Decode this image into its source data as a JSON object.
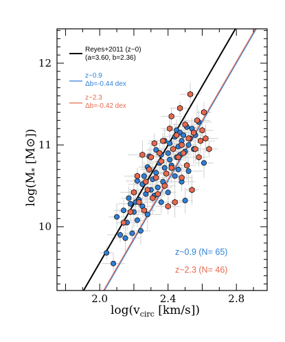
{
  "chart_data": {
    "type": "scatter",
    "xlabel": "log(v_circ [km/s])",
    "ylabel": "log(M_* [M_⊙])",
    "xlim": [
      1.75,
      2.98
    ],
    "ylim": [
      9.22,
      12.42
    ],
    "x_ticks": [
      2.0,
      2.4,
      2.8
    ],
    "x_tick_labels": [
      "2.0",
      "2.4",
      "2.8"
    ],
    "y_ticks": [
      10,
      11,
      12
    ],
    "y_tick_labels": [
      "10",
      "11",
      "12"
    ],
    "colors": {
      "reference": "#000000",
      "z09": "#2f7fd6",
      "z23": "#e8684e"
    },
    "legend": {
      "placement": "top-left",
      "entries": [
        {
          "line1": "Reyes+2011 (z~0)",
          "line2": "(a=3.60, b=2.36)",
          "color": "#000000"
        },
        {
          "line1": "z~0.9",
          "line2": "Δb=-0.44 dex",
          "color": "#2f7fd6"
        },
        {
          "line1": "z~2.3",
          "line2": "Δb=-0.42 dex",
          "color": "#e8684e"
        }
      ]
    },
    "counts": [
      {
        "label": "z~0.9 (N= 65)",
        "color": "#2f7fd6"
      },
      {
        "label": "z~2.3 (N= 46)",
        "color": "#e8684e"
      }
    ],
    "lines": [
      {
        "id": "reyes",
        "slope": 3.6,
        "intercept": 2.36,
        "color": "#000000"
      },
      {
        "id": "z09-fit",
        "slope": 3.6,
        "intercept": 1.92,
        "color": "#2f7fd6"
      },
      {
        "id": "z23-fit",
        "slope": 3.6,
        "intercept": 1.94,
        "color": "#e8684e"
      }
    ],
    "series": [
      {
        "id": "z09",
        "marker": "circle",
        "x": [
          2.04,
          2.08,
          2.1,
          2.12,
          2.14,
          2.15,
          2.16,
          2.17,
          2.18,
          2.19,
          2.2,
          2.2,
          2.21,
          2.22,
          2.22,
          2.23,
          2.24,
          2.25,
          2.25,
          2.26,
          2.27,
          2.28,
          2.28,
          2.29,
          2.3,
          2.31,
          2.32,
          2.33,
          2.33,
          2.34,
          2.35,
          2.36,
          2.36,
          2.37,
          2.38,
          2.38,
          2.39,
          2.4,
          2.4,
          2.41,
          2.41,
          2.42,
          2.43,
          2.44,
          2.44,
          2.45,
          2.45,
          2.46,
          2.46,
          2.47,
          2.47,
          2.48,
          2.48,
          2.49,
          2.5,
          2.5,
          2.51,
          2.52,
          2.52,
          2.53,
          2.54,
          2.55,
          2.56,
          2.58,
          2.61
        ],
        "y": [
          9.68,
          9.55,
          10.12,
          9.9,
          10.2,
          9.86,
          10.05,
          10.35,
          10.28,
          9.92,
          10.42,
          10.18,
          10.3,
          10.56,
          10.08,
          10.33,
          9.95,
          10.52,
          10.25,
          10.62,
          10.4,
          10.73,
          10.15,
          10.86,
          10.45,
          10.58,
          10.38,
          10.66,
          10.94,
          10.48,
          10.78,
          10.88,
          10.3,
          10.55,
          10.72,
          11.05,
          10.65,
          10.9,
          10.42,
          10.82,
          11.02,
          10.75,
          10.95,
          10.62,
          11.1,
          10.85,
          11.18,
          10.7,
          10.98,
          10.88,
          11.15,
          10.55,
          11.05,
          11.12,
          10.92,
          10.32,
          11.22,
          11.0,
          10.68,
          11.08,
          11.2,
          10.95,
          11.12,
          11.28,
          10.78
        ]
      },
      {
        "id": "z23",
        "marker": "hexagon",
        "x": [
          2.14,
          2.18,
          2.2,
          2.22,
          2.23,
          2.25,
          2.26,
          2.27,
          2.28,
          2.29,
          2.3,
          2.31,
          2.32,
          2.33,
          2.34,
          2.35,
          2.36,
          2.37,
          2.38,
          2.39,
          2.4,
          2.41,
          2.42,
          2.42,
          2.43,
          2.44,
          2.45,
          2.46,
          2.47,
          2.48,
          2.48,
          2.49,
          2.5,
          2.51,
          2.52,
          2.53,
          2.54,
          2.55,
          2.56,
          2.57,
          2.58,
          2.59,
          2.6,
          2.61,
          2.62,
          2.64
        ],
        "y": [
          10.05,
          10.18,
          10.42,
          10.62,
          10.3,
          10.88,
          10.2,
          10.55,
          10.45,
          10.7,
          10.85,
          10.35,
          11.02,
          10.6,
          10.4,
          10.9,
          10.8,
          11.05,
          10.5,
          10.65,
          10.25,
          11.2,
          10.72,
          11.35,
          10.95,
          10.3,
          11.12,
          10.85,
          11.45,
          11.0,
          10.6,
          10.9,
          11.25,
          10.75,
          11.08,
          11.62,
          10.45,
          11.15,
          10.95,
          11.3,
          10.85,
          11.05,
          11.18,
          11.4,
          11.08,
          10.95
        ]
      }
    ]
  }
}
